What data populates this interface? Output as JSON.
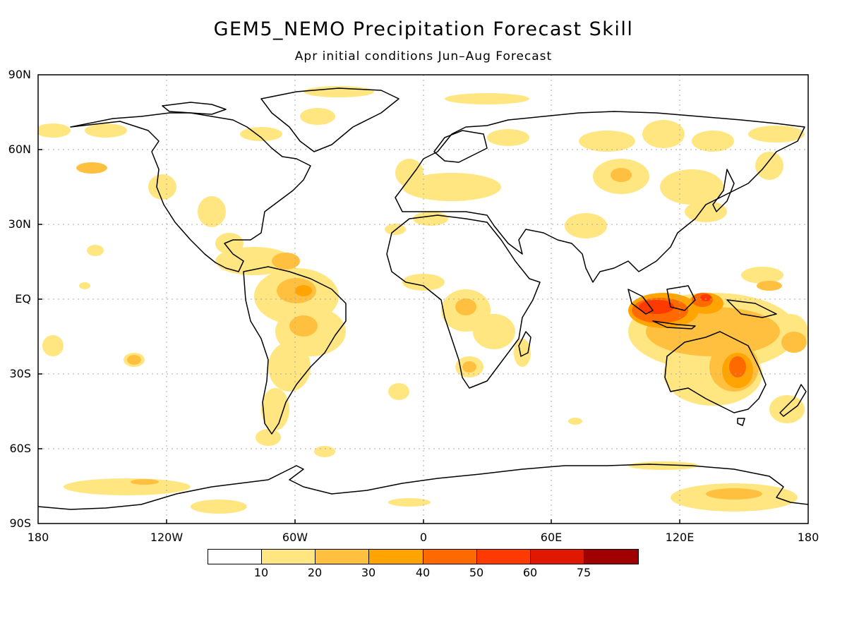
{
  "title": "GEM5_NEMO Precipitation Forecast Skill",
  "subtitle": "Apr initial conditions   Jun–Aug Forecast",
  "axes": {
    "lat_labels": [
      "90N",
      "60N",
      "30N",
      "EQ",
      "30S",
      "60S",
      "90S"
    ],
    "lon_labels": [
      "180",
      "120W",
      "60W",
      "0",
      "60E",
      "120E",
      "180"
    ]
  },
  "colorbar": {
    "labels": [
      "10",
      "20",
      "30",
      "40",
      "50",
      "60",
      "75"
    ],
    "colors": [
      "#ffffff",
      "#ffe680",
      "#ffc040",
      "#ffa400",
      "#ff6a00",
      "#ff3a00",
      "#e01800",
      "#a00000"
    ]
  },
  "colors": {
    "coastline": "#000000",
    "gridline": "#aaaaaa"
  }
}
